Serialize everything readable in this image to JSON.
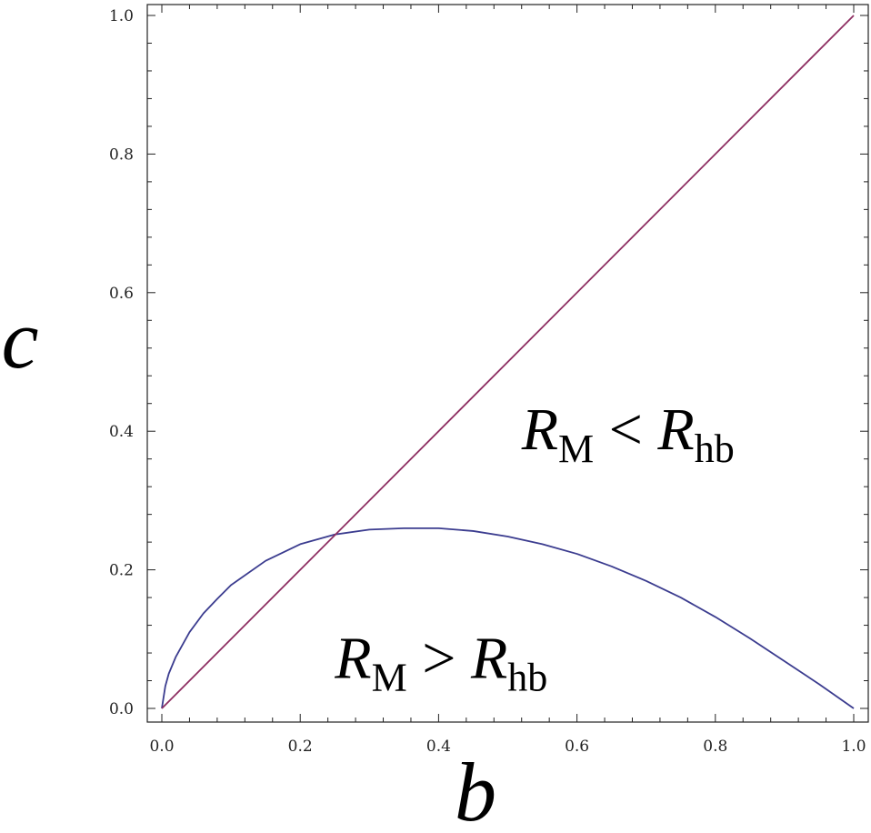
{
  "chart_data": {
    "type": "line",
    "title": "",
    "xlabel": "b",
    "ylabel": "c",
    "xlim": [
      0,
      1
    ],
    "ylim": [
      0,
      1
    ],
    "x_ticks": [
      "0.0",
      "0.2",
      "0.4",
      "0.6",
      "0.8",
      "1.0"
    ],
    "y_ticks": [
      "0.0",
      "0.2",
      "0.4",
      "0.6",
      "0.8",
      "1.0"
    ],
    "grid": false,
    "legend": "none",
    "series": [
      {
        "color": "#3b3c8f",
        "x": [
          0,
          0.005,
          0.01,
          0.02,
          0.04,
          0.06,
          0.08,
          0.1,
          0.15,
          0.2,
          0.25,
          0.3,
          0.35,
          0.37,
          0.4,
          0.45,
          0.5,
          0.55,
          0.6,
          0.65,
          0.7,
          0.75,
          0.8,
          0.85,
          0.9,
          0.95,
          1.0
        ],
        "y": [
          0,
          0.032,
          0.05,
          0.074,
          0.11,
          0.137,
          0.158,
          0.178,
          0.213,
          0.237,
          0.251,
          0.258,
          0.26,
          0.26,
          0.26,
          0.256,
          0.248,
          0.237,
          0.223,
          0.205,
          0.184,
          0.16,
          0.132,
          0.101,
          0.068,
          0.035,
          0
        ]
      },
      {
        "color": "#8e2f62",
        "x": [
          0,
          1
        ],
        "y": [
          0,
          1
        ]
      }
    ],
    "annotations": [
      {
        "var": "R",
        "sub": "M",
        "op": "<",
        "var2": "R",
        "sub2": "hb",
        "x": 0.52,
        "y": 0.4
      },
      {
        "var": "R",
        "sub": "M",
        "op": ">",
        "var2": "R",
        "sub2": "hb",
        "x": 0.25,
        "y": 0.07
      }
    ]
  }
}
